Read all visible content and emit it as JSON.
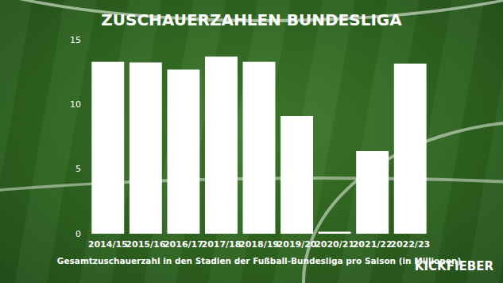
{
  "chart_data": {
    "type": "bar",
    "title": "ZUSCHAUERZAHLEN BUNDESLIGA",
    "xlabel": "Gesamtzuschauerzahl in den Stadien der Fußball-Bundesliga pro Saison (in Millionen)",
    "annotations": [
      "KICKFIEBER"
    ],
    "categories": [
      "2014/15",
      "2015/16",
      "2016/17",
      "2017/18",
      "2018/19",
      "2019/20",
      "2020/21",
      "2021/22",
      "2022/23"
    ],
    "values": [
      13.3,
      13.25,
      12.7,
      13.7,
      13.3,
      9.1,
      0.15,
      6.4,
      13.15
    ],
    "color": "#ffffff",
    "ylim": [
      0,
      15
    ],
    "yticks": [
      0,
      5,
      10,
      15
    ],
    "grid": false,
    "data_labels": false
  }
}
